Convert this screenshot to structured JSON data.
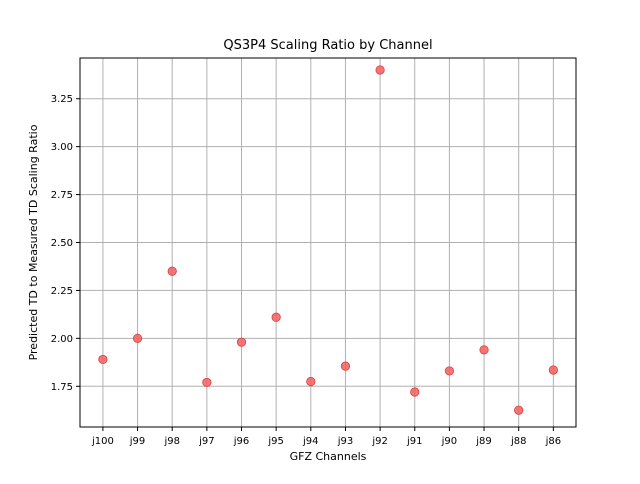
{
  "chart_data": {
    "type": "scatter",
    "title": "QS3P4 Scaling Ratio by Channel",
    "xlabel": "GFZ Channels",
    "ylabel": "Predicted TD to Measured TD Scaling Ratio",
    "categories": [
      "j100",
      "j99",
      "j98",
      "j97",
      "j96",
      "j95",
      "j94",
      "j93",
      "j92",
      "j91",
      "j90",
      "j89",
      "j88",
      "j86"
    ],
    "values": [
      1.89,
      2.0,
      2.35,
      1.77,
      1.98,
      2.11,
      1.775,
      1.855,
      3.4,
      1.72,
      1.83,
      1.94,
      1.625,
      1.835
    ],
    "ylim": [
      1.5375,
      3.4625
    ],
    "yticks": [
      1.75,
      2.0,
      2.25,
      2.5,
      2.75,
      3.0,
      3.25
    ],
    "ytick_labels": [
      "1.75",
      "2.00",
      "2.25",
      "2.50",
      "2.75",
      "3.00",
      "3.25"
    ],
    "grid": true,
    "marker_color": "#f06060",
    "marker_edge_color": "#e03b3b",
    "grid_color": "#b0b0b0"
  }
}
